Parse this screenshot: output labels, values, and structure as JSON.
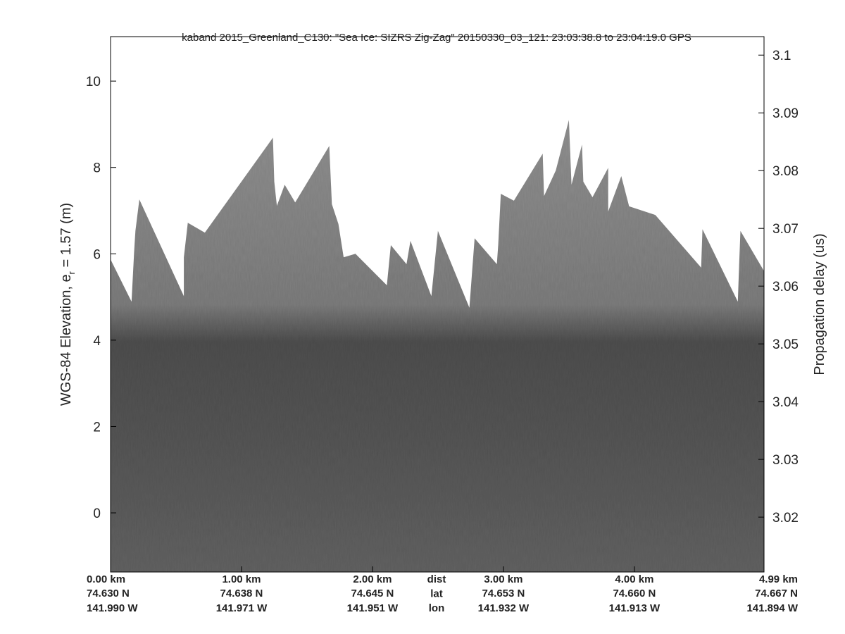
{
  "chart_data": {
    "type": "echogram",
    "title": "kaband 2015_Greenland_C130: \"Sea Ice: SIZRS Zig-Zag\"  20150330_03_121: 23:03:38.8 to 23:04:19.0 GPS",
    "ylabel_parts": [
      "WGS-84 Elevation, e",
      "r",
      " = 1.57 (m)"
    ],
    "y2label": "Propagation delay (us)",
    "xlim": [
      0,
      4.99
    ],
    "xticks": [
      {
        "value": 0,
        "label": "0.00 km"
      },
      {
        "value": 1,
        "label": "1.00 km"
      },
      {
        "value": 2,
        "label": "2.00 km"
      },
      {
        "value": 3,
        "label": "3.00 km"
      },
      {
        "value": 4,
        "label": "4.00 km"
      },
      {
        "value": 4.99,
        "label": "4.99 km"
      }
    ],
    "lat_labels": [
      "74.630 N",
      "74.638 N",
      "74.645 N",
      "74.653 N",
      "74.660 N",
      "74.667 N"
    ],
    "lon_labels": [
      "141.990 W",
      "141.971 W",
      "141.951 W",
      "141.932 W",
      "141.913 W",
      "141.894 W"
    ],
    "row_labels": [
      "dist",
      "lat",
      "lon"
    ],
    "ylim": [
      -1.37,
      11.03
    ],
    "yticks": [
      0,
      2,
      4,
      6,
      8,
      10
    ],
    "y2lim": [
      3.0105,
      3.1032
    ],
    "y2ticks": [
      3.02,
      3.03,
      3.04,
      3.05,
      3.06,
      3.07,
      3.08,
      3.09,
      3.1
    ],
    "x": [
      0,
      0.16,
      0.18,
      0.19,
      0.22,
      0.56,
      0.56,
      0.59,
      0.72,
      1.24,
      1.25,
      1.27,
      1.33,
      1.41,
      1.67,
      1.69,
      1.74,
      1.78,
      1.87,
      2.11,
      2.14,
      2.26,
      2.29,
      2.45,
      2.5,
      2.74,
      2.78,
      2.95,
      2.96,
      2.98,
      3.08,
      3.3,
      3.31,
      3.4,
      3.5,
      3.52,
      3.6,
      3.61,
      3.68,
      3.8,
      3.8,
      3.9,
      3.96,
      4.16,
      4.51,
      4.52,
      4.79,
      4.8,
      4.81,
      4.99
    ],
    "values": [
      5.87,
      4.89,
      6.05,
      6.53,
      7.26,
      5.02,
      5.92,
      6.72,
      6.49,
      8.69,
      7.67,
      7.11,
      7.6,
      7.19,
      8.5,
      7.15,
      6.69,
      5.92,
      6.0,
      5.27,
      6.2,
      5.76,
      6.3,
      5.02,
      6.53,
      4.75,
      6.36,
      5.76,
      6.2,
      7.39,
      7.23,
      8.32,
      7.34,
      7.93,
      9.1,
      7.6,
      8.53,
      7.67,
      7.31,
      7.99,
      6.98,
      7.8,
      7.1,
      6.9,
      5.68,
      6.57,
      4.89,
      5.76,
      6.53,
      5.6
    ]
  }
}
